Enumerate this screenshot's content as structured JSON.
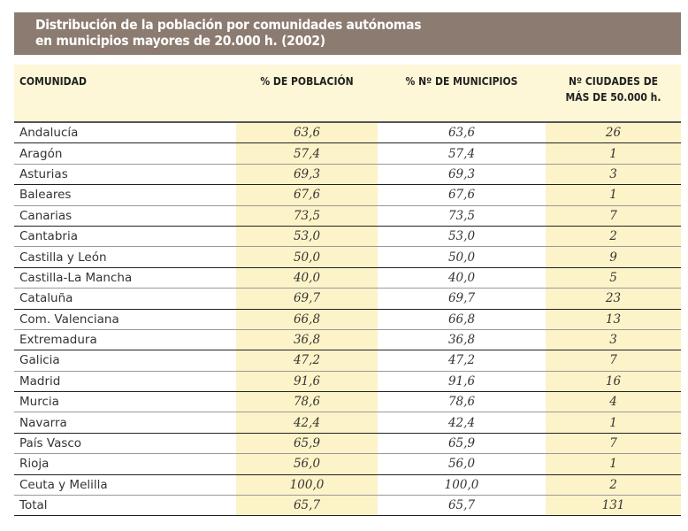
{
  "title": {
    "line1": "Distribución de la población por comunidades autónomas",
    "line2": "en municipios mayores de 20.000 h. (2002)"
  },
  "headers": {
    "comunidad": "COMUNIDAD",
    "poblacion": "% DE POBLACIÓN",
    "municipios": "% Nº DE MUNICIPIOS",
    "ciudades_1": "Nº CIUDADES DE",
    "ciudades_2": "MÁS DE 50.000 h."
  },
  "rows": [
    {
      "name": "Andalucía",
      "pob": "63,6",
      "mun": "63,6",
      "ciu": "26"
    },
    {
      "name": "Aragón",
      "pob": "57,4",
      "mun": "57,4",
      "ciu": "1"
    },
    {
      "name": "Asturias",
      "pob": "69,3",
      "mun": "69,3",
      "ciu": "3"
    },
    {
      "name": "Baleares",
      "pob": "67,6",
      "mun": "67,6",
      "ciu": "1"
    },
    {
      "name": "Canarias",
      "pob": "73,5",
      "mun": "73,5",
      "ciu": "7"
    },
    {
      "name": "Cantabria",
      "pob": "53,0",
      "mun": "53,0",
      "ciu": "2"
    },
    {
      "name": "Castilla y León",
      "pob": "50,0",
      "mun": "50,0",
      "ciu": "9"
    },
    {
      "name": "Castilla-La Mancha",
      "pob": "40,0",
      "mun": "40,0",
      "ciu": "5"
    },
    {
      "name": "Cataluña",
      "pob": "69,7",
      "mun": "69,7",
      "ciu": "23"
    },
    {
      "name": "Com. Valenciana",
      "pob": "66,8",
      "mun": "66,8",
      "ciu": "13"
    },
    {
      "name": "Extremadura",
      "pob": "36,8",
      "mun": "36,8",
      "ciu": "3"
    },
    {
      "name": "Galicia",
      "pob": "47,2",
      "mun": "47,2",
      "ciu": "7"
    },
    {
      "name": "Madrid",
      "pob": "91,6",
      "mun": "91,6",
      "ciu": "16"
    },
    {
      "name": "Murcia",
      "pob": "78,6",
      "mun": "78,6",
      "ciu": "4"
    },
    {
      "name": "Navarra",
      "pob": "42,4",
      "mun": "42,4",
      "ciu": "1"
    },
    {
      "name": "País Vasco",
      "pob": "65,9",
      "mun": "65,9",
      "ciu": "7"
    },
    {
      "name": "Rioja",
      "pob": "56,0",
      "mun": "56,0",
      "ciu": "1"
    },
    {
      "name": "Ceuta y Melilla",
      "pob": "100,0",
      "mun": "100,0",
      "ciu": "2"
    },
    {
      "name": "Total",
      "pob": "65,7",
      "mun": "65,7",
      "ciu": "131"
    }
  ]
}
